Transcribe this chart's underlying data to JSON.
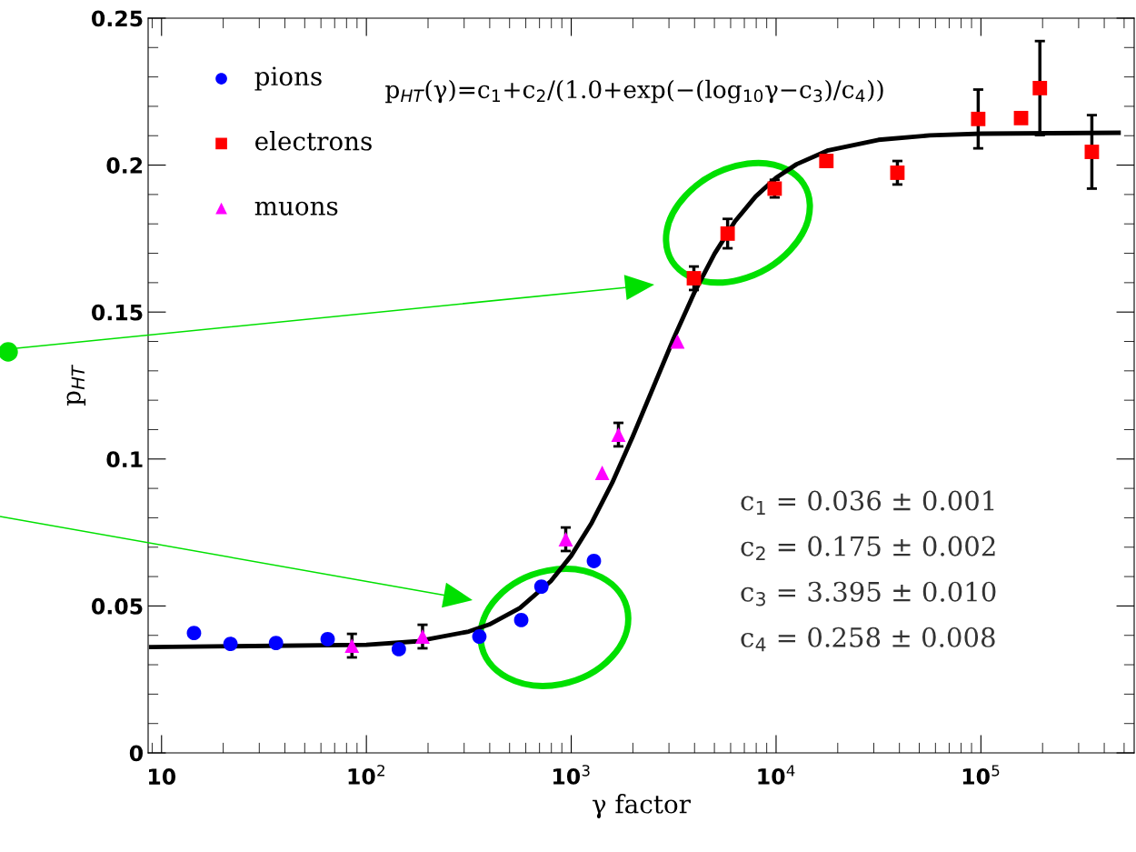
{
  "chart_data": {
    "type": "scatter",
    "xlabel": "γ factor",
    "ylabel": "p$_{HT}$",
    "log": "x",
    "xlim": [
      8.6,
      560000
    ],
    "ylim": [
      0,
      0.25
    ],
    "xticks": [
      {
        "value": 10,
        "label": "10"
      },
      {
        "value": 100,
        "label": "10$^{2}$"
      },
      {
        "value": 1000,
        "label": "10$^{3}$"
      },
      {
        "value": 10000,
        "label": "10$^{4}$"
      },
      {
        "value": 100000,
        "label": "10$^{5}$"
      }
    ],
    "yticks": [
      0,
      0.05,
      0.1,
      0.15,
      0.2,
      0.25
    ],
    "grid": false,
    "legend": "top left",
    "series": [
      {
        "name": "pions",
        "type": "scatter",
        "marker": "circle",
        "color": "#0000ff",
        "x": [
          14.4,
          21.7,
          36.2,
          64.7,
          144,
          356,
          570,
          715,
          1290
        ],
        "values": [
          0.0408,
          0.0371,
          0.0374,
          0.0387,
          0.0353,
          0.0396,
          0.0452,
          0.0566,
          0.0653
        ]
      },
      {
        "name": "electrons",
        "type": "scatter",
        "marker": "square",
        "color": "#ff0000",
        "x": [
          3970,
          5800,
          9840,
          17600,
          39100,
          97000,
          157000,
          194000,
          348000
        ],
        "values": [
          0.1615,
          0.1767,
          0.192,
          0.2014,
          0.1974,
          0.2157,
          0.216,
          0.2262,
          0.2045
        ],
        "errors": [
          0.004,
          0.005,
          0.003,
          0.002,
          0.004,
          0.01,
          null,
          0.016,
          0.0125
        ]
      },
      {
        "name": "muons",
        "type": "scatter",
        "marker": "triangle",
        "color": "#ff00ff",
        "x": [
          85,
          188,
          940,
          1416,
          1700,
          3300
        ],
        "values": [
          0.0365,
          0.0396,
          0.0727,
          0.0953,
          0.1083,
          0.14
        ],
        "errors": [
          0.004,
          0.004,
          0.004,
          null,
          0.004,
          null
        ]
      },
      {
        "type": "line",
        "marker": "none",
        "color": "#000000",
        "x": [
          8.9,
          100,
          178,
          316,
          398,
          562,
          794,
          1000,
          1259,
          1585,
          1995,
          2512,
          3162,
          3981,
          5012,
          6310,
          7943,
          10000,
          12590,
          17780,
          31620,
          56230,
          100000,
          470000
        ],
        "values": [
          0.036,
          0.0368,
          0.038,
          0.0413,
          0.0437,
          0.0493,
          0.0584,
          0.0671,
          0.0783,
          0.0919,
          0.1076,
          0.1243,
          0.141,
          0.1565,
          0.1699,
          0.1809,
          0.1893,
          0.1957,
          0.2003,
          0.2049,
          0.2086,
          0.2101,
          0.2107,
          0.211
        ]
      }
    ],
    "annotations": [
      "p$_{HT}$(γ)=c$_{1}$+c$_{2}$/(1.0+exp(−(log$_{10}$γ−c$_{3}$)/c$_{4}$))",
      "c$_{1}$ = 0.036 ± 0.001",
      "c$_{2}$ = 0.175 ± 0.002",
      "c$_{3}$ = 3.395 ± 0.010",
      "c$_{4}$ = 0.258 ± 0.008"
    ]
  }
}
